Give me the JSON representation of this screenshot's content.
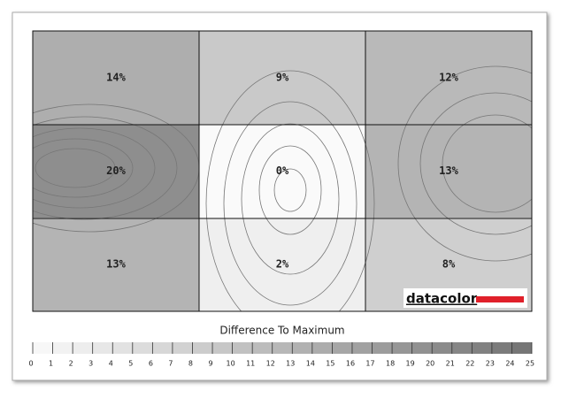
{
  "chart_data": {
    "type": "heatmap",
    "values": [
      [
        14,
        9,
        12
      ],
      [
        20,
        0,
        13
      ],
      [
        13,
        2,
        8
      ]
    ],
    "value_labels": [
      [
        "14%",
        "9%",
        "12%"
      ],
      [
        "20%",
        "0%",
        "13%"
      ],
      [
        "13%",
        "2%",
        "8%"
      ]
    ],
    "colorbar": {
      "title": "Difference To Maximum",
      "lim": [
        0,
        25
      ],
      "ticks": [
        0,
        1,
        2,
        3,
        4,
        5,
        6,
        7,
        8,
        9,
        10,
        11,
        12,
        13,
        14,
        15,
        16,
        17,
        18,
        19,
        20,
        21,
        22,
        23,
        24,
        25
      ]
    },
    "logo": "datacolor"
  }
}
